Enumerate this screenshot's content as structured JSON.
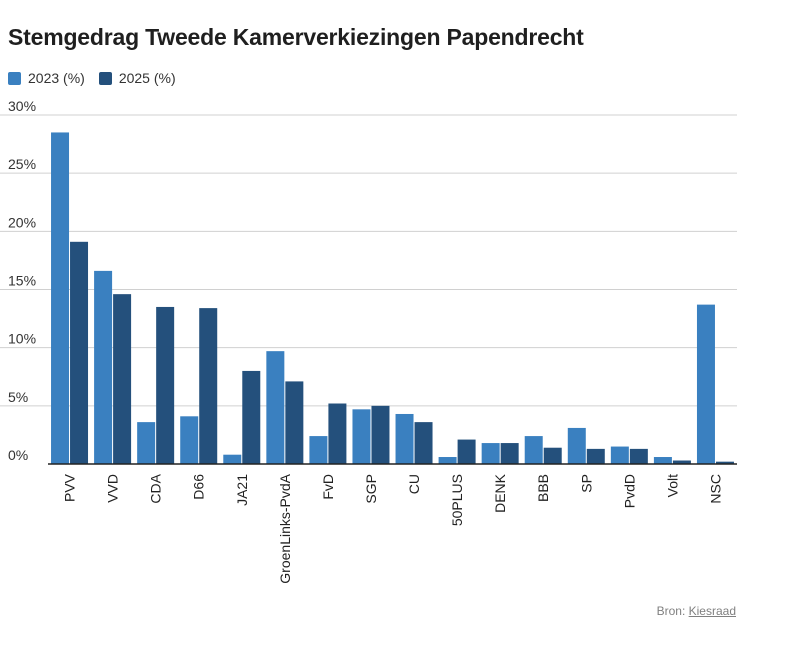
{
  "chart_data": {
    "type": "bar",
    "title": "Stemgedrag Tweede Kamerverkiezingen Papendrecht",
    "categories": [
      "PVV",
      "VVD",
      "CDA",
      "D66",
      "JA21",
      "GroenLinks-PvdA",
      "FvD",
      "SGP",
      "CU",
      "50PLUS",
      "DENK",
      "BBB",
      "SP",
      "PvdD",
      "Volt",
      "NSC"
    ],
    "series": [
      {
        "name": "2023 (%)",
        "color": "#3a80c0",
        "values": [
          28.5,
          16.6,
          3.6,
          4.1,
          0.8,
          9.7,
          2.4,
          4.7,
          4.3,
          0.6,
          1.8,
          2.4,
          3.1,
          1.5,
          0.6,
          13.7
        ]
      },
      {
        "name": "2025 (%)",
        "color": "#24507c",
        "values": [
          19.1,
          14.6,
          13.5,
          13.4,
          8.0,
          7.1,
          5.2,
          5.0,
          3.6,
          2.1,
          1.8,
          1.4,
          1.3,
          1.3,
          0.3,
          0.2
        ]
      }
    ],
    "ylim": [
      0,
      30
    ],
    "yticks": [
      0,
      5,
      10,
      15,
      20,
      25,
      30
    ],
    "ytick_labels": [
      "0%",
      "5%",
      "10%",
      "15%",
      "20%",
      "25%",
      "30%"
    ],
    "grid": true,
    "legend_position": "top-left"
  },
  "source": {
    "label": "Bron:",
    "link": "Kiesraad"
  }
}
